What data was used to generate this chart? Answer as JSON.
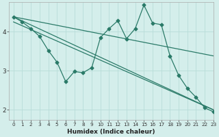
{
  "xlabel": "Humidex (Indice chaleur)",
  "background_color": "#d4eeeb",
  "grid_color": "#b8ddd8",
  "line_color": "#2a7a68",
  "xlim": [
    -0.5,
    23
  ],
  "ylim": [
    1.75,
    4.75
  ],
  "yticks": [
    2,
    3,
    4
  ],
  "xticks": [
    0,
    1,
    2,
    3,
    4,
    5,
    6,
    7,
    8,
    9,
    10,
    11,
    12,
    13,
    14,
    15,
    16,
    17,
    18,
    19,
    20,
    21,
    22,
    23
  ],
  "zigzag_x": [
    0,
    1,
    2,
    3,
    4,
    5,
    6,
    7,
    8,
    9,
    10,
    11,
    12,
    13,
    14,
    15,
    16,
    17,
    18,
    19,
    20,
    21,
    22,
    23
  ],
  "zigzag_y": [
    4.38,
    4.25,
    4.08,
    3.88,
    3.52,
    3.22,
    2.72,
    2.98,
    2.95,
    3.08,
    3.85,
    4.08,
    4.28,
    3.82,
    4.08,
    4.68,
    4.22,
    4.18,
    3.38,
    2.88,
    2.55,
    2.32,
    2.05,
    1.95
  ],
  "trend1_x": [
    0,
    23
  ],
  "trend1_y": [
    4.38,
    3.38
  ],
  "trend2_x": [
    0,
    23
  ],
  "trend2_y": [
    4.38,
    2.0
  ],
  "trend3_x": [
    0,
    23
  ],
  "trend3_y": [
    4.25,
    2.0
  ],
  "marker": "D",
  "markersize": 2.5,
  "linewidth": 0.9
}
